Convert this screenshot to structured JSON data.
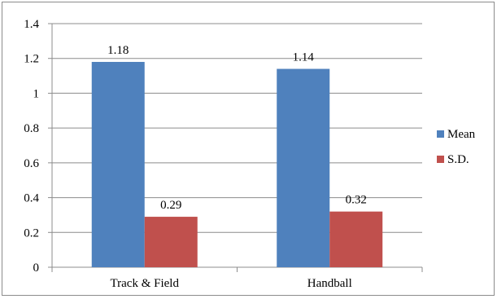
{
  "chart_data": {
    "type": "bar",
    "categories": [
      "Track & Field",
      "Handball"
    ],
    "series": [
      {
        "name": "Mean",
        "values": [
          1.18,
          1.14
        ],
        "color": "#4f81bd"
      },
      {
        "name": "S.D.",
        "values": [
          0.29,
          0.32
        ],
        "color": "#c0504d"
      }
    ],
    "data_labels": [
      [
        "1.18",
        "1.14"
      ],
      [
        "0.29",
        "0.32"
      ]
    ],
    "y_ticks": [
      "0",
      "0.2",
      "0.4",
      "0.6",
      "0.8",
      "1",
      "1.2",
      "1.4"
    ],
    "ylim": [
      0,
      1.4
    ],
    "grid": true,
    "legend": "right",
    "title": "",
    "xlabel": "",
    "ylabel": ""
  }
}
